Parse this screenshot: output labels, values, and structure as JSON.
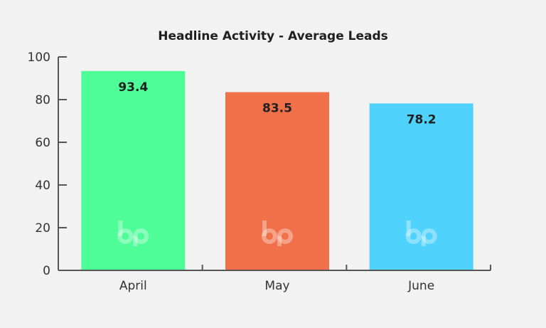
{
  "chart_data": {
    "type": "bar",
    "title": "Headline Activity - Average Leads",
    "xlabel": "",
    "ylabel": "",
    "categories": [
      "April",
      "May",
      "June"
    ],
    "values": [
      93.4,
      83.5,
      78.2
    ],
    "data_labels": [
      "93.4",
      "83.5",
      "78.2"
    ],
    "colors": [
      "#4efd98",
      "#f07049",
      "#4fd3fd"
    ],
    "ylim": [
      0,
      100
    ],
    "y_ticks": [
      0,
      20,
      40,
      60,
      80,
      100
    ],
    "grid": false,
    "legend": "none",
    "axis_color": "#555555",
    "watermark_icon": "bp-logo-icon"
  }
}
